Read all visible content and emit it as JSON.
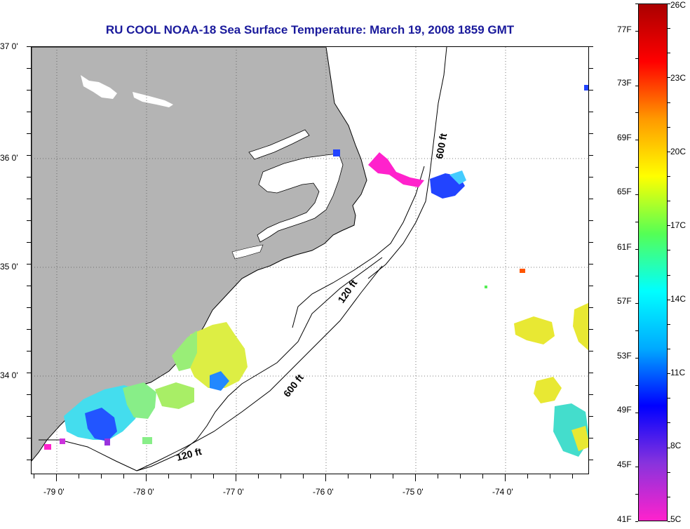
{
  "title": "RU COOL  NOAA-18  Sea Surface Temperature:  March 19, 2008 1859 GMT",
  "map": {
    "latitude_labels": [
      "37 0'",
      "36 0'",
      "35 0'",
      "34 0'"
    ],
    "longitude_labels": [
      "-79 0'",
      "-78 0'",
      "-77 0'",
      "-76 0'",
      "-75 0'",
      "-74 0'"
    ],
    "depth_contours": [
      {
        "label": "120 ft"
      },
      {
        "label": "600 ft"
      },
      {
        "label": "120 ft"
      },
      {
        "label": "600 ft"
      }
    ],
    "colors": {
      "land": "#b4b4b4",
      "ocean_no_data": "#ffffff",
      "coastline": "#000000",
      "grid": "#555555"
    }
  },
  "colorbar": {
    "fahrenheit_labels": [
      "77F",
      "73F",
      "69F",
      "65F",
      "61F",
      "57F",
      "53F",
      "49F",
      "45F",
      "41F"
    ],
    "celsius_labels": [
      "26C",
      "23C",
      "20C",
      "17C",
      "14C",
      "11C",
      "8C",
      "5C"
    ],
    "range_celsius": [
      5,
      26
    ],
    "gradient_colors": [
      "#ff22cc",
      "#8833dd",
      "#0000ff",
      "#00aaff",
      "#00ffff",
      "#55ff55",
      "#ffff00",
      "#ff9900",
      "#ff0000",
      "#aa0000"
    ]
  }
}
